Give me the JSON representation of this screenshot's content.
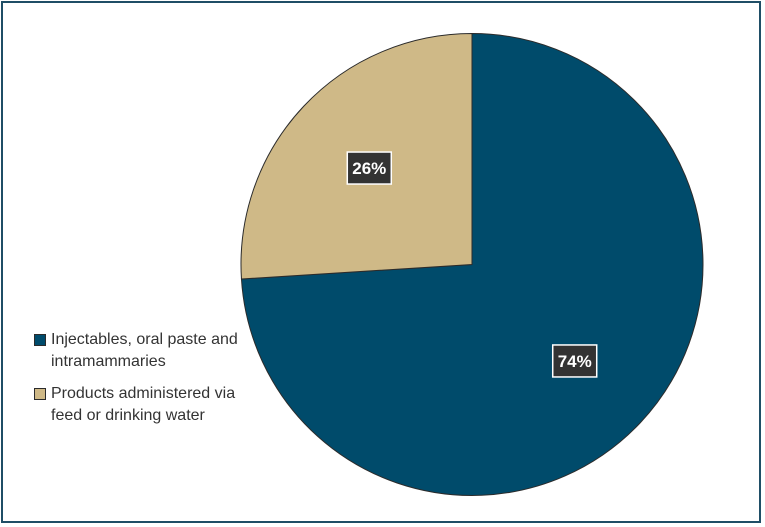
{
  "chart_data": {
    "type": "pie",
    "slices": [
      {
        "label": "Injectables, oral paste and intramammaries",
        "value": 74,
        "display": "74%",
        "color": "#004b6b"
      },
      {
        "label": "Products administered via feed or drinking water",
        "value": 26,
        "display": "26%",
        "color": "#cfb987"
      }
    ],
    "legend": "left",
    "start_angle": "12 o'clock",
    "direction": "clockwise"
  },
  "legend": {
    "items": [
      {
        "label": "Injectables, oral paste and intramammaries",
        "color": "#004b6b"
      },
      {
        "label": "Products administered via feed or drinking water",
        "color": "#cfb987"
      }
    ]
  }
}
